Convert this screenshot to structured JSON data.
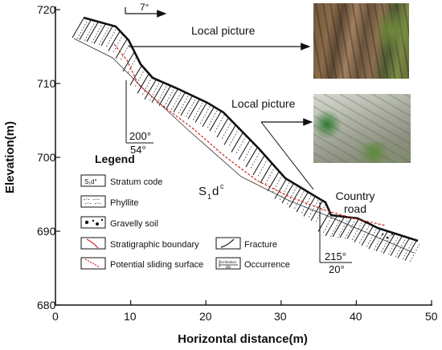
{
  "diagram": {
    "axis_y_label": "Elevation(m)",
    "axis_x_label": "Horizontal distance(m)",
    "y_ticks": [
      "720",
      "710",
      "700",
      "690",
      "680"
    ],
    "x_ticks": [
      "0",
      "10",
      "20",
      "30",
      "40",
      "50"
    ],
    "dip_arrow_label": "7°",
    "local_picture_top": "Local picture",
    "local_picture_mid": "Local picture",
    "occurrence_left_top": "200°",
    "occurrence_left_bottom": "54°",
    "occurrence_right_top": "215°",
    "occurrence_right_bottom": "20°",
    "stratum_label_main": "S",
    "stratum_label_sub": "1",
    "stratum_label_tail": "d",
    "stratum_label_sup": "c",
    "country_road_line1": "Country",
    "country_road_line2": "road"
  },
  "legend": {
    "title": "Legend",
    "stratum_code": "Stratum code",
    "phyllite": "Phyllite",
    "gravelly_soil": "Gravelly soil",
    "stratigraphic_boundary": "Stratigraphic boundary",
    "potential_sliding_surface": "Potential sliding surface",
    "fracture": "Fracture",
    "occurrence": "Occurrence",
    "stratum_code_symbol": "S₁d°",
    "occurrence_symbol_top": "inclination",
    "occurrence_symbol_bottom": "dip"
  },
  "colors": {
    "ink": "#111111",
    "red_line": "#d22020"
  }
}
